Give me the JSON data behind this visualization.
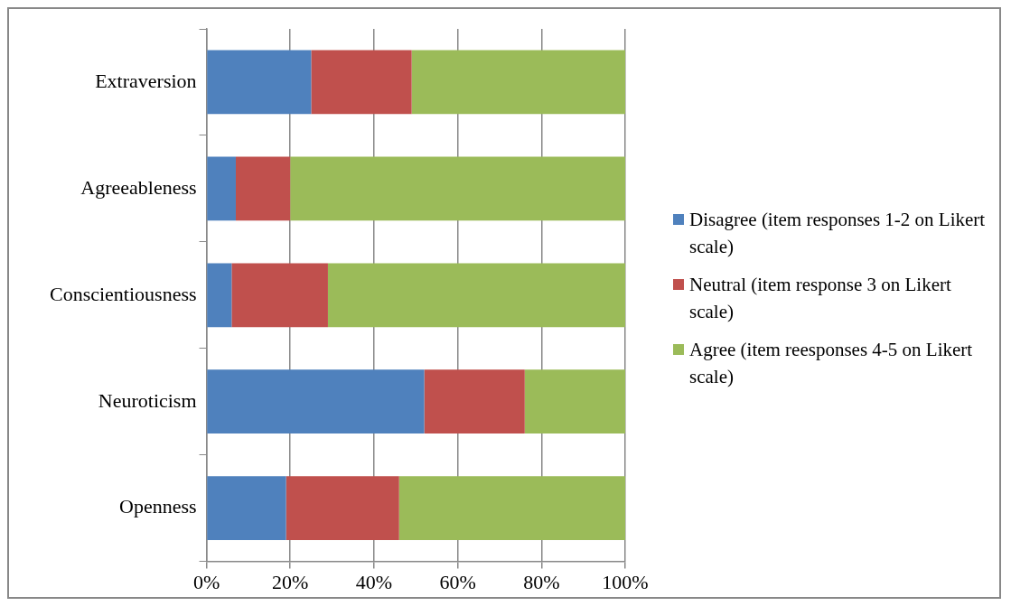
{
  "chart_data": {
    "type": "bar",
    "orientation": "horizontal",
    "stacked": true,
    "categories": [
      "Extraversion",
      "Agreeableness",
      "Conscientiousness",
      "Neuroticism",
      "Openness"
    ],
    "series": [
      {
        "name": "Disagree (item responses 1-2 on Likert scale)",
        "color": "#4f81bd",
        "values": [
          25,
          7,
          6,
          52,
          19
        ]
      },
      {
        "name": "Neutral (item response 3 on Likert scale)",
        "color": "#c0504d",
        "values": [
          24,
          13,
          23,
          24,
          27
        ]
      },
      {
        "name": "Agree (item reesponses 4-5 on Likert scale)",
        "color": "#9bbb59",
        "values": [
          51,
          80,
          71,
          24,
          54
        ]
      }
    ],
    "xlim": [
      0,
      100
    ],
    "xticks": [
      {
        "value": 0,
        "label": "0%"
      },
      {
        "value": 20,
        "label": "20%"
      },
      {
        "value": 40,
        "label": "40%"
      },
      {
        "value": 60,
        "label": "60%"
      },
      {
        "value": 80,
        "label": "80%"
      },
      {
        "value": 100,
        "label": "100%"
      }
    ],
    "grid": "x",
    "legend": "right"
  }
}
